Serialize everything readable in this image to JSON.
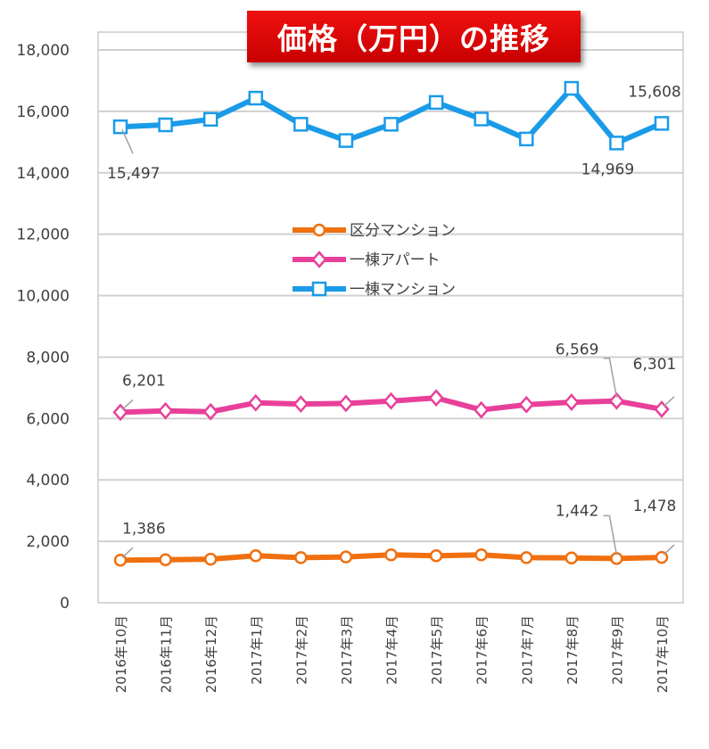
{
  "chart_data": {
    "type": "line",
    "title": "価格（万円）の推移",
    "categories": [
      "2016年10月",
      "2016年11月",
      "2016年12月",
      "2017年1月",
      "2017年2月",
      "2017年3月",
      "2017年4月",
      "2017年5月",
      "2017年6月",
      "2017年7月",
      "2017年8月",
      "2017年9月",
      "2017年10月"
    ],
    "ylim": [
      0,
      18000
    ],
    "yticks": [
      "0",
      "2,000",
      "4,000",
      "6,000",
      "8,000",
      "10,000",
      "12,000",
      "14,000",
      "16,000",
      "18,000"
    ],
    "grid": true,
    "legend_position": "center",
    "series": [
      {
        "name": "区分マンション",
        "color": "#f07010",
        "marker": "circle",
        "values": [
          1386,
          1400,
          1420,
          1530,
          1470,
          1490,
          1560,
          1530,
          1560,
          1470,
          1460,
          1442,
          1478
        ]
      },
      {
        "name": "一棟アパート",
        "color": "#e8409a",
        "marker": "diamond",
        "values": [
          6201,
          6250,
          6220,
          6510,
          6470,
          6490,
          6570,
          6670,
          6280,
          6450,
          6530,
          6569,
          6301
        ]
      },
      {
        "name": "一棟マンション",
        "color": "#1a9be8",
        "marker": "square",
        "values": [
          15497,
          15560,
          15740,
          16430,
          15580,
          15050,
          15580,
          16290,
          15750,
          15100,
          16750,
          14969,
          15608
        ]
      }
    ],
    "data_labels": [
      {
        "series": 0,
        "index": 0,
        "text": "1,386"
      },
      {
        "series": 0,
        "index": 11,
        "text": "1,442"
      },
      {
        "series": 0,
        "index": 12,
        "text": "1,478"
      },
      {
        "series": 1,
        "index": 0,
        "text": "6,201"
      },
      {
        "series": 1,
        "index": 11,
        "text": "6,569"
      },
      {
        "series": 1,
        "index": 12,
        "text": "6,301"
      },
      {
        "series": 2,
        "index": 0,
        "text": "15,497"
      },
      {
        "series": 2,
        "index": 11,
        "text": "14,969"
      },
      {
        "series": 2,
        "index": 12,
        "text": "15,608"
      }
    ]
  }
}
